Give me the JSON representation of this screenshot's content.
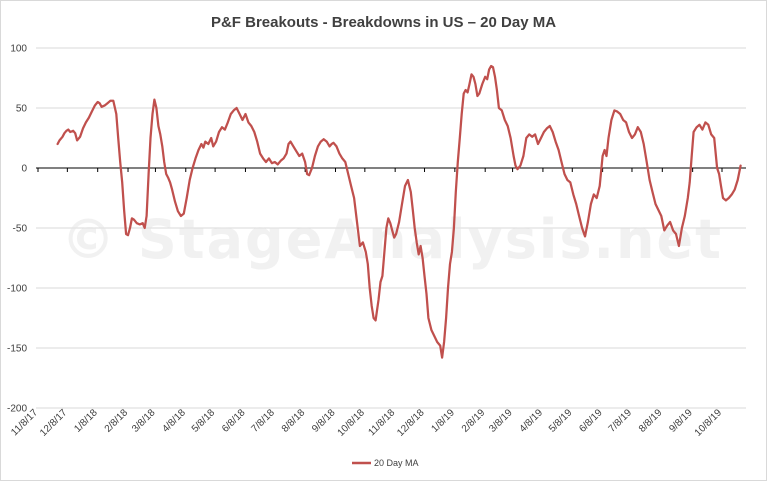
{
  "chart_data": {
    "type": "line",
    "title": "P&F Breakouts - Breakdowns in US – 20 Day MA",
    "xlabel": "",
    "ylabel": "",
    "ylim": [
      -200,
      100
    ],
    "y_ticks": [
      100,
      50,
      0,
      -50,
      -100,
      -150,
      -200
    ],
    "x_ticks": [
      "11/8/17",
      "12/8/17",
      "1/8/18",
      "2/8/18",
      "3/8/18",
      "4/8/18",
      "5/8/18",
      "6/8/18",
      "7/8/18",
      "8/8/18",
      "9/8/18",
      "10/8/18",
      "11/8/18",
      "12/8/18",
      "1/8/19",
      "2/8/19",
      "3/8/19",
      "4/8/19",
      "5/8/19",
      "6/8/19",
      "7/8/19",
      "8/8/19",
      "9/8/19",
      "10/8/19"
    ],
    "grid": "horizontal",
    "legend_position": "bottom",
    "watermark": "© StageAnalysis.net",
    "line_color": "#c0504d",
    "series": [
      {
        "name": "20 Day MA",
        "points": [
          [
            "11/28/17",
            20
          ],
          [
            "11/30/17",
            23
          ],
          [
            "12/3/17",
            26
          ],
          [
            "12/5/17",
            29
          ],
          [
            "12/7/17",
            31
          ],
          [
            "12/9/17",
            32
          ],
          [
            "12/11/17",
            30
          ],
          [
            "12/14/17",
            31
          ],
          [
            "12/16/17",
            29
          ],
          [
            "12/18/17",
            23
          ],
          [
            "12/21/17",
            26
          ],
          [
            "12/24/17",
            33
          ],
          [
            "12/27/17",
            38
          ],
          [
            "12/30/17",
            42
          ],
          [
            "1/2/18",
            47
          ],
          [
            "1/5/18",
            52
          ],
          [
            "1/8/18",
            55
          ],
          [
            "1/10/18",
            54
          ],
          [
            "1/12/18",
            51
          ],
          [
            "1/15/18",
            52
          ],
          [
            "1/18/18",
            54
          ],
          [
            "1/21/18",
            56
          ],
          [
            "1/24/18",
            56
          ],
          [
            "1/27/18",
            45
          ],
          [
            "1/29/18",
            25
          ],
          [
            "1/31/18",
            5
          ],
          [
            "2/2/18",
            -12
          ],
          [
            "2/4/18",
            -35
          ],
          [
            "2/6/18",
            -55
          ],
          [
            "2/8/18",
            -56
          ],
          [
            "2/10/18",
            -50
          ],
          [
            "2/12/18",
            -42
          ],
          [
            "2/14/18",
            -43
          ],
          [
            "2/17/18",
            -46
          ],
          [
            "2/20/18",
            -47
          ],
          [
            "2/23/18",
            -46
          ],
          [
            "2/25/18",
            -50
          ],
          [
            "2/27/18",
            -40
          ],
          [
            "3/1/18",
            -5
          ],
          [
            "3/3/18",
            25
          ],
          [
            "3/5/18",
            45
          ],
          [
            "3/7/18",
            57
          ],
          [
            "3/9/18",
            50
          ],
          [
            "3/11/18",
            35
          ],
          [
            "3/13/18",
            28
          ],
          [
            "3/15/18",
            18
          ],
          [
            "3/17/18",
            5
          ],
          [
            "3/19/18",
            -5
          ],
          [
            "3/21/18",
            -8
          ],
          [
            "3/23/18",
            -12
          ],
          [
            "3/25/18",
            -18
          ],
          [
            "3/28/18",
            -28
          ],
          [
            "3/31/18",
            -36
          ],
          [
            "4/3/18",
            -40
          ],
          [
            "4/6/18",
            -38
          ],
          [
            "4/9/18",
            -25
          ],
          [
            "4/12/18",
            -10
          ],
          [
            "4/15/18",
            0
          ],
          [
            "4/18/18",
            8
          ],
          [
            "4/21/18",
            15
          ],
          [
            "4/24/18",
            20
          ],
          [
            "4/26/18",
            17
          ],
          [
            "4/28/18",
            22
          ],
          [
            "5/1/18",
            20
          ],
          [
            "5/4/18",
            25
          ],
          [
            "5/6/18",
            18
          ],
          [
            "5/9/18",
            22
          ],
          [
            "5/12/18",
            30
          ],
          [
            "5/15/18",
            34
          ],
          [
            "5/18/18",
            32
          ],
          [
            "5/21/18",
            38
          ],
          [
            "5/24/18",
            45
          ],
          [
            "5/27/18",
            48
          ],
          [
            "5/30/18",
            50
          ],
          [
            "6/2/18",
            45
          ],
          [
            "6/5/18",
            40
          ],
          [
            "6/8/18",
            45
          ],
          [
            "6/11/18",
            38
          ],
          [
            "6/14/18",
            35
          ],
          [
            "6/17/18",
            30
          ],
          [
            "6/20/18",
            22
          ],
          [
            "6/23/18",
            12
          ],
          [
            "6/26/18",
            8
          ],
          [
            "6/29/18",
            5
          ],
          [
            "7/2/18",
            8
          ],
          [
            "7/5/18",
            4
          ],
          [
            "7/8/18",
            5
          ],
          [
            "7/11/18",
            3
          ],
          [
            "7/14/18",
            6
          ],
          [
            "7/17/18",
            8
          ],
          [
            "7/20/18",
            12
          ],
          [
            "7/22/18",
            20
          ],
          [
            "7/24/18",
            22
          ],
          [
            "7/27/18",
            18
          ],
          [
            "7/30/18",
            14
          ],
          [
            "8/2/18",
            10
          ],
          [
            "8/5/18",
            12
          ],
          [
            "8/8/18",
            5
          ],
          [
            "8/10/18",
            -5
          ],
          [
            "8/12/18",
            -6
          ],
          [
            "8/15/18",
            0
          ],
          [
            "8/18/18",
            10
          ],
          [
            "8/21/18",
            18
          ],
          [
            "8/24/18",
            22
          ],
          [
            "8/27/18",
            24
          ],
          [
            "8/30/18",
            22
          ],
          [
            "9/2/18",
            18
          ],
          [
            "9/4/18",
            20
          ],
          [
            "9/6/18",
            21
          ],
          [
            "9/9/18",
            18
          ],
          [
            "9/12/18",
            12
          ],
          [
            "9/15/18",
            8
          ],
          [
            "9/18/18",
            5
          ],
          [
            "9/21/18",
            -5
          ],
          [
            "9/24/18",
            -15
          ],
          [
            "9/27/18",
            -25
          ],
          [
            "9/30/18",
            -45
          ],
          [
            "10/3/18",
            -65
          ],
          [
            "10/6/18",
            -62
          ],
          [
            "10/9/18",
            -70
          ],
          [
            "10/11/18",
            -80
          ],
          [
            "10/13/18",
            -100
          ],
          [
            "10/15/18",
            -115
          ],
          [
            "10/17/18",
            -125
          ],
          [
            "10/19/18",
            -127
          ],
          [
            "10/22/18",
            -110
          ],
          [
            "10/24/18",
            -95
          ],
          [
            "10/26/18",
            -90
          ],
          [
            "10/28/18",
            -70
          ],
          [
            "10/30/18",
            -50
          ],
          [
            "11/1/18",
            -42
          ],
          [
            "11/3/18",
            -46
          ],
          [
            "11/5/18",
            -52
          ],
          [
            "11/7/18",
            -58
          ],
          [
            "11/9/18",
            -55
          ],
          [
            "11/12/18",
            -45
          ],
          [
            "11/15/18",
            -30
          ],
          [
            "11/18/18",
            -15
          ],
          [
            "11/21/18",
            -10
          ],
          [
            "11/24/18",
            -20
          ],
          [
            "11/26/18",
            -35
          ],
          [
            "11/28/18",
            -50
          ],
          [
            "11/30/18",
            -62
          ],
          [
            "12/2/18",
            -72
          ],
          [
            "12/4/18",
            -65
          ],
          [
            "12/6/18",
            -75
          ],
          [
            "12/8/18",
            -90
          ],
          [
            "12/10/18",
            -105
          ],
          [
            "12/12/18",
            -125
          ],
          [
            "12/15/18",
            -135
          ],
          [
            "12/18/18",
            -140
          ],
          [
            "12/21/18",
            -145
          ],
          [
            "12/24/18",
            -148
          ],
          [
            "12/26/18",
            -158
          ],
          [
            "12/28/18",
            -145
          ],
          [
            "12/30/18",
            -125
          ],
          [
            "1/1/19",
            -100
          ],
          [
            "1/3/19",
            -80
          ],
          [
            "1/5/19",
            -70
          ],
          [
            "1/7/19",
            -50
          ],
          [
            "1/9/19",
            -20
          ],
          [
            "1/11/19",
            5
          ],
          [
            "1/13/19",
            25
          ],
          [
            "1/15/19",
            45
          ],
          [
            "1/17/19",
            62
          ],
          [
            "1/19/19",
            65
          ],
          [
            "1/21/19",
            63
          ],
          [
            "1/23/19",
            70
          ],
          [
            "1/25/19",
            78
          ],
          [
            "1/27/19",
            76
          ],
          [
            "1/29/19",
            70
          ],
          [
            "1/31/19",
            60
          ],
          [
            "2/2/19",
            62
          ],
          [
            "2/5/19",
            70
          ],
          [
            "2/8/19",
            76
          ],
          [
            "2/10/19",
            74
          ],
          [
            "2/12/19",
            82
          ],
          [
            "2/14/19",
            85
          ],
          [
            "2/16/19",
            84
          ],
          [
            "2/18/19",
            76
          ],
          [
            "2/20/19",
            65
          ],
          [
            "2/22/19",
            50
          ],
          [
            "2/25/19",
            48
          ],
          [
            "2/28/19",
            40
          ],
          [
            "3/3/19",
            35
          ],
          [
            "3/6/19",
            25
          ],
          [
            "3/9/19",
            10
          ],
          [
            "3/11/19",
            2
          ],
          [
            "3/13/19",
            -1
          ],
          [
            "3/16/19",
            2
          ],
          [
            "3/19/19",
            10
          ],
          [
            "3/22/19",
            25
          ],
          [
            "3/25/19",
            28
          ],
          [
            "3/28/19",
            26
          ],
          [
            "3/31/19",
            28
          ],
          [
            "4/3/19",
            20
          ],
          [
            "4/6/19",
            25
          ],
          [
            "4/9/19",
            30
          ],
          [
            "4/12/19",
            33
          ],
          [
            "4/15/19",
            35
          ],
          [
            "4/18/19",
            30
          ],
          [
            "4/21/19",
            22
          ],
          [
            "4/24/19",
            15
          ],
          [
            "4/27/19",
            5
          ],
          [
            "4/30/19",
            -5
          ],
          [
            "5/3/19",
            -10
          ],
          [
            "5/6/19",
            -12
          ],
          [
            "5/9/19",
            -22
          ],
          [
            "5/12/19",
            -30
          ],
          [
            "5/15/19",
            -40
          ],
          [
            "5/18/19",
            -50
          ],
          [
            "5/21/19",
            -57
          ],
          [
            "5/24/19",
            -45
          ],
          [
            "5/27/19",
            -30
          ],
          [
            "5/30/19",
            -22
          ],
          [
            "6/2/19",
            -25
          ],
          [
            "6/5/19",
            -15
          ],
          [
            "6/8/19",
            10
          ],
          [
            "6/10/19",
            15
          ],
          [
            "6/12/19",
            10
          ],
          [
            "6/14/19",
            25
          ],
          [
            "6/17/19",
            40
          ],
          [
            "6/20/19",
            48
          ],
          [
            "6/23/19",
            47
          ],
          [
            "6/26/19",
            45
          ],
          [
            "6/29/19",
            40
          ],
          [
            "7/2/19",
            38
          ],
          [
            "7/5/19",
            30
          ],
          [
            "7/8/19",
            25
          ],
          [
            "7/11/19",
            28
          ],
          [
            "7/14/19",
            34
          ],
          [
            "7/17/19",
            30
          ],
          [
            "7/20/19",
            20
          ],
          [
            "7/23/19",
            5
          ],
          [
            "7/26/19",
            -10
          ],
          [
            "7/29/19",
            -20
          ],
          [
            "8/1/19",
            -30
          ],
          [
            "8/4/19",
            -35
          ],
          [
            "8/7/19",
            -40
          ],
          [
            "8/10/19",
            -52
          ],
          [
            "8/13/19",
            -48
          ],
          [
            "8/16/19",
            -45
          ],
          [
            "8/19/19",
            -52
          ],
          [
            "8/22/19",
            -55
          ],
          [
            "8/25/19",
            -65
          ],
          [
            "8/28/19",
            -50
          ],
          [
            "8/31/19",
            -40
          ],
          [
            "9/3/19",
            -25
          ],
          [
            "9/5/19",
            -12
          ],
          [
            "9/7/19",
            10
          ],
          [
            "9/9/19",
            30
          ],
          [
            "9/12/19",
            34
          ],
          [
            "9/15/19",
            36
          ],
          [
            "9/18/19",
            32
          ],
          [
            "9/21/19",
            38
          ],
          [
            "9/24/19",
            36
          ],
          [
            "9/27/19",
            28
          ],
          [
            "9/30/19",
            25
          ],
          [
            "10/3/19",
            0
          ],
          [
            "10/5/19",
            -5
          ],
          [
            "10/7/19",
            -15
          ],
          [
            "10/9/19",
            -25
          ],
          [
            "10/12/19",
            -27
          ],
          [
            "10/15/19",
            -25
          ],
          [
            "10/18/19",
            -22
          ],
          [
            "10/21/19",
            -18
          ],
          [
            "10/24/19",
            -10
          ],
          [
            "10/27/19",
            2
          ]
        ]
      }
    ]
  }
}
